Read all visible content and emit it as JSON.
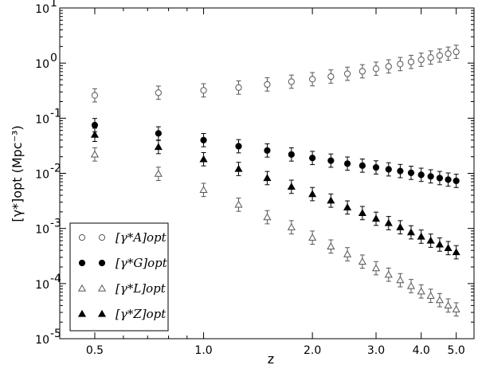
{
  "chart_data": {
    "type": "scatter",
    "xlabel": "z",
    "ylabel": "[γ*]opt (Mpc⁻³)",
    "xscale": "log",
    "yscale": "log",
    "xlim": [
      0.4,
      5.6
    ],
    "ylim": [
      1e-05,
      10
    ],
    "x_ticks": [
      {
        "value": 0.5,
        "label": "0.5"
      },
      {
        "value": 1.0,
        "label": "1.0"
      },
      {
        "value": 2.0,
        "label": "2.0"
      },
      {
        "value": 3.0,
        "label": "3.0"
      },
      {
        "value": 4.0,
        "label": "4.0"
      },
      {
        "value": 5.0,
        "label": "5.0"
      }
    ],
    "y_ticks": [
      {
        "value": 1e-05,
        "mantissa": "10",
        "exponent": "-5"
      },
      {
        "value": 0.0001,
        "mantissa": "10",
        "exponent": "-4"
      },
      {
        "value": 0.001,
        "mantissa": "10",
        "exponent": "-3"
      },
      {
        "value": 0.01,
        "mantissa": "10",
        "exponent": "-2"
      },
      {
        "value": 0.1,
        "mantissa": "10",
        "exponent": "-1"
      },
      {
        "value": 1,
        "mantissa": "10",
        "exponent": "0"
      },
      {
        "value": 10,
        "mantissa": "10",
        "exponent": "1"
      }
    ],
    "legend_position": "bottom-left",
    "x": [
      0.5,
      0.75,
      1.0,
      1.25,
      1.5,
      1.75,
      2.0,
      2.25,
      2.5,
      2.75,
      3.0,
      3.25,
      3.5,
      3.75,
      4.0,
      4.25,
      4.5,
      4.75,
      5.0
    ],
    "series": [
      {
        "name": "[γ*A]opt",
        "symbol": "A",
        "marker": "circle-open",
        "color": "#555555",
        "values": [
          0.26,
          0.29,
          0.32,
          0.36,
          0.41,
          0.46,
          0.51,
          0.57,
          0.64,
          0.71,
          0.79,
          0.87,
          0.96,
          1.05,
          1.15,
          1.26,
          1.37,
          1.48,
          1.6
        ]
      },
      {
        "name": "[γ*G]opt",
        "symbol": "G",
        "marker": "circle-filled",
        "color": "#000000",
        "values": [
          0.075,
          0.053,
          0.04,
          0.031,
          0.026,
          0.022,
          0.019,
          0.017,
          0.015,
          0.0138,
          0.0128,
          0.0118,
          0.011,
          0.0102,
          0.0094,
          0.0088,
          0.0082,
          0.0077,
          0.0073
        ]
      },
      {
        "name": "[γ*L]opt",
        "symbol": "L",
        "marker": "triangle-open",
        "color": "#555555",
        "values": [
          0.022,
          0.0098,
          0.005,
          0.0027,
          0.0016,
          0.00105,
          0.00068,
          0.00047,
          0.00034,
          0.00025,
          0.00019,
          0.000145,
          0.000115,
          9e-05,
          7.2e-05,
          6e-05,
          5e-05,
          4e-05,
          3.4e-05
        ]
      },
      {
        "name": "[γ*Z]opt",
        "symbol": "Z",
        "marker": "triangle-filled",
        "color": "#000000",
        "values": [
          0.05,
          0.03,
          0.018,
          0.012,
          0.0082,
          0.0057,
          0.0042,
          0.0032,
          0.0024,
          0.0019,
          0.0015,
          0.00125,
          0.00105,
          0.00085,
          0.00071,
          0.0006,
          0.00051,
          0.00044,
          0.00037
        ]
      }
    ]
  }
}
